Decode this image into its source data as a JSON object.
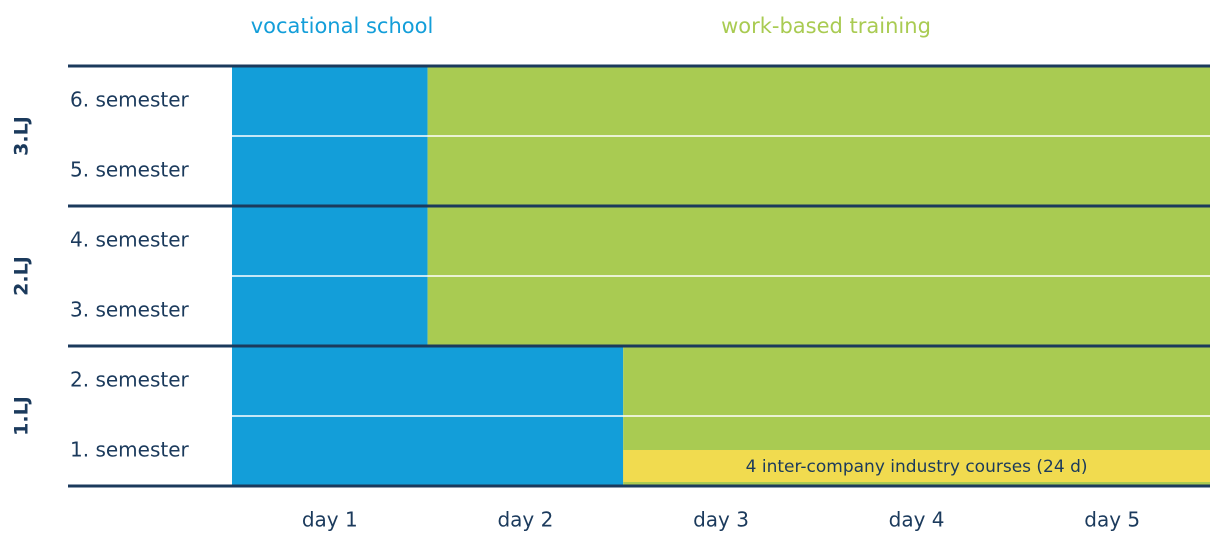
{
  "legend": {
    "school": "vocational school",
    "training": "work-based training"
  },
  "groups": [
    {
      "label": "3.LJ",
      "rows": [
        {
          "label": "6. semester",
          "school_days": 1
        },
        {
          "label": "5. semester",
          "school_days": 1
        }
      ]
    },
    {
      "label": "2.LJ",
      "rows": [
        {
          "label": "4. semester",
          "school_days": 1
        },
        {
          "label": "3. semester",
          "school_days": 1
        }
      ]
    },
    {
      "label": "1.LJ",
      "rows": [
        {
          "label": "2. semester",
          "school_days": 2
        },
        {
          "label": "1. semester",
          "school_days": 2,
          "note": "4 inter-company industry courses (24 d)"
        }
      ]
    }
  ],
  "days": [
    "day 1",
    "day 2",
    "day 3",
    "day 4",
    "day 5"
  ]
}
